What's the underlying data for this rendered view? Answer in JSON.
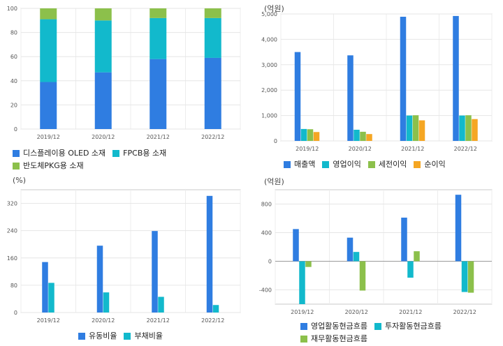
{
  "colors": {
    "blue": "#2f7de1",
    "cyan": "#12b9cc",
    "green": "#8cc04b",
    "orange": "#f5a623"
  },
  "chart_data": [
    {
      "id": "composition",
      "type": "bar",
      "stacked": true,
      "unit": "",
      "categories": [
        "2019/12",
        "2020/12",
        "2021/12",
        "2022/12"
      ],
      "ylim": [
        0,
        100
      ],
      "yticks": [
        0,
        20,
        40,
        60,
        80,
        100
      ],
      "grid": true,
      "legend_position": "bottom",
      "series": [
        {
          "name": "디스플레이용 OLED 소재",
          "color": "#2f7de1",
          "values": [
            39,
            47,
            58,
            59
          ]
        },
        {
          "name": "FPCB용 소재",
          "color": "#12b9cc",
          "values": [
            52,
            43,
            34,
            33
          ]
        },
        {
          "name": "반도체PKG용 소재",
          "color": "#8cc04b",
          "values": [
            9,
            10,
            8,
            8
          ]
        }
      ]
    },
    {
      "id": "income",
      "type": "bar",
      "stacked": false,
      "unit": "(억원)",
      "categories": [
        "2019/12",
        "2020/12",
        "2021/12",
        "2022/12"
      ],
      "ylim": [
        0,
        5000
      ],
      "yticks": [
        0,
        1000,
        2000,
        3000,
        4000,
        5000
      ],
      "ytick_labels": [
        "0",
        "1,000",
        "2,000",
        "3,000",
        "4,000",
        "5,000"
      ],
      "grid": true,
      "legend_position": "bottom",
      "series": [
        {
          "name": "매출액",
          "color": "#2f7de1",
          "values": [
            3500,
            3370,
            4890,
            4920
          ]
        },
        {
          "name": "영업이익",
          "color": "#12b9cc",
          "values": [
            470,
            440,
            1000,
            1000
          ]
        },
        {
          "name": "세전이익",
          "color": "#8cc04b",
          "values": [
            460,
            360,
            1010,
            1010
          ]
        },
        {
          "name": "순이익",
          "color": "#f5a623",
          "values": [
            350,
            270,
            810,
            860
          ]
        }
      ]
    },
    {
      "id": "ratios",
      "type": "bar",
      "stacked": false,
      "unit": "(%)",
      "categories": [
        "2019/12",
        "2020/12",
        "2021/12",
        "2022/12"
      ],
      "ylim": [
        0,
        360
      ],
      "yticks": [
        0,
        80,
        160,
        240,
        320
      ],
      "grid": true,
      "legend_position": "bottom",
      "series": [
        {
          "name": "유동비율",
          "color": "#2f7de1",
          "values": [
            148,
            196,
            239,
            342
          ]
        },
        {
          "name": "부채비율",
          "color": "#12b9cc",
          "values": [
            87,
            59,
            46,
            22
          ]
        }
      ]
    },
    {
      "id": "cashflow",
      "type": "bar",
      "stacked": false,
      "unit": "(억원)",
      "categories": [
        "2019/12",
        "2020/12",
        "2021/12",
        "2022/12"
      ],
      "ylim": [
        -600,
        1000
      ],
      "yticks": [
        -400,
        0,
        400,
        800
      ],
      "grid": true,
      "legend_position": "bottom",
      "series": [
        {
          "name": "영업활동현금흐름",
          "color": "#2f7de1",
          "values": [
            450,
            330,
            610,
            930
          ]
        },
        {
          "name": "투자활동현금흐름",
          "color": "#12b9cc",
          "values": [
            -600,
            130,
            -230,
            -430
          ]
        },
        {
          "name": "재무활동현금흐름",
          "color": "#8cc04b",
          "values": [
            -80,
            -410,
            140,
            -440
          ]
        }
      ]
    }
  ]
}
